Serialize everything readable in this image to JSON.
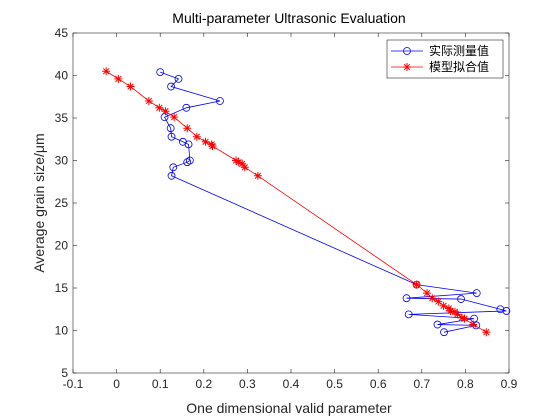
{
  "chart_data": {
    "type": "line",
    "title": "Multi-parameter Ultrasonic Evaluation",
    "xlabel": "One dimensional valid parameter",
    "ylabel": "Average grain size/μm",
    "xlim": [
      -0.1,
      0.9
    ],
    "ylim": [
      5,
      45
    ],
    "xticks": [
      -0.1,
      0,
      0.1,
      0.2,
      0.3,
      0.4,
      0.5,
      0.6,
      0.7,
      0.8,
      0.9
    ],
    "yticks": [
      5,
      10,
      15,
      20,
      25,
      30,
      35,
      40,
      45
    ],
    "grid": false,
    "legend_position": "top-right",
    "series": [
      {
        "name": "实际测量值",
        "color": "#0000ff",
        "marker": "circle",
        "x": [
          0.1,
          0.142,
          0.125,
          0.237,
          0.16,
          0.11,
          0.124,
          0.126,
          0.152,
          0.165,
          0.168,
          0.162,
          0.13,
          0.126,
          0.688,
          0.826,
          0.665,
          0.79,
          0.88,
          0.894,
          0.67,
          0.82,
          0.736,
          0.825,
          0.751
        ],
        "y": [
          40.4,
          39.6,
          38.7,
          37.0,
          36.2,
          35.1,
          33.8,
          32.8,
          32.2,
          31.9,
          30.0,
          29.8,
          29.2,
          28.2,
          15.4,
          14.4,
          13.8,
          13.7,
          12.5,
          12.3,
          11.9,
          11.4,
          10.7,
          10.6,
          9.8
        ]
      },
      {
        "name": "模型拟合值",
        "color": "#ff0000",
        "marker": "star",
        "x": [
          -0.024,
          0.004,
          0.032,
          0.074,
          0.098,
          0.112,
          0.132,
          0.162,
          0.184,
          0.204,
          0.218,
          0.22,
          0.274,
          0.28,
          0.288,
          0.294,
          0.324,
          0.688,
          0.712,
          0.724,
          0.738,
          0.75,
          0.762,
          0.766,
          0.776,
          0.782,
          0.792,
          0.798,
          0.818,
          0.848
        ],
        "y": [
          40.5,
          39.6,
          38.7,
          37.0,
          36.2,
          35.8,
          35.1,
          33.8,
          32.8,
          32.2,
          31.9,
          31.7,
          30.0,
          29.8,
          29.6,
          29.2,
          28.2,
          15.4,
          14.4,
          13.8,
          13.4,
          12.9,
          12.6,
          12.3,
          12.2,
          11.9,
          11.5,
          11.4,
          10.7,
          9.8
        ]
      }
    ]
  }
}
